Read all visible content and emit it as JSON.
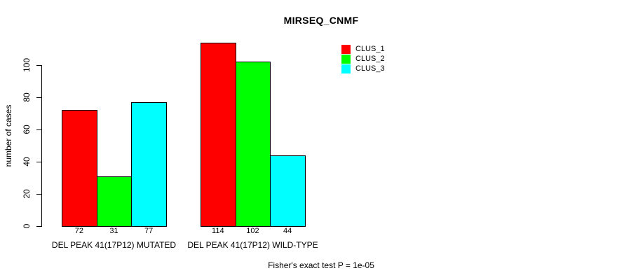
{
  "title": "MIRSEQ_CNMF",
  "footer": "Fisher's exact test P = 1e-05",
  "chart_data": {
    "type": "bar",
    "title": "MIRSEQ_CNMF",
    "xlabel": "",
    "ylabel": "number of cases",
    "categories": [
      "DEL PEAK 41(17P12) MUTATED",
      "DEL PEAK 41(17P12) WILD-TYPE"
    ],
    "series": [
      {
        "name": "CLUS_1",
        "color": "#FF0000",
        "values": [
          72,
          114
        ]
      },
      {
        "name": "CLUS_2",
        "color": "#00FF00",
        "values": [
          31,
          102
        ]
      },
      {
        "name": "CLUS_3",
        "color": "#00FFFF",
        "values": [
          77,
          44
        ]
      }
    ],
    "bar_value_labels": [
      [
        "72",
        "31",
        "77"
      ],
      [
        "114",
        "102",
        "44"
      ]
    ],
    "yticks": [
      "0",
      "20",
      "40",
      "60",
      "80",
      "100"
    ],
    "ylim": [
      0,
      114
    ],
    "grid": false,
    "legend_position": "top-right",
    "annotation": "Fisher's exact test P = 1e-05"
  }
}
